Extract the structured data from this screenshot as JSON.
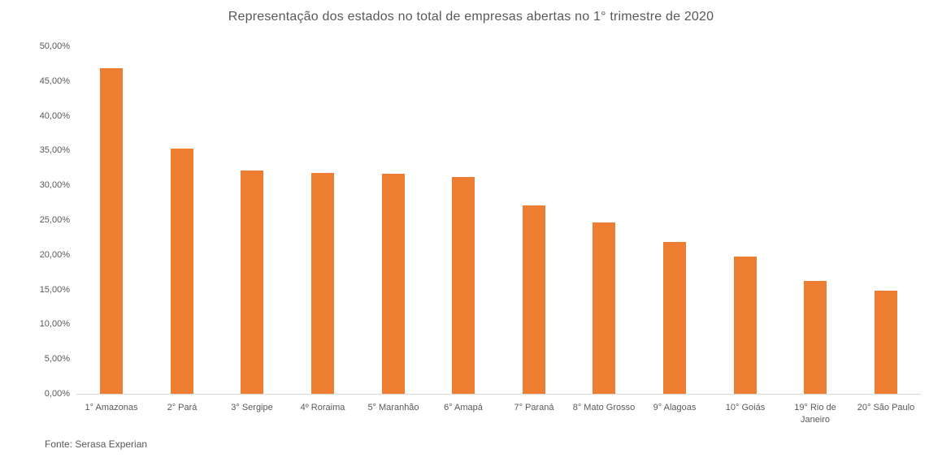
{
  "chart_data": {
    "type": "bar",
    "title": "Representação dos estados no total de empresas abertas no 1° trimestre de 2020",
    "categories": [
      "1° Amazonas",
      "2° Pará",
      "3° Sergipe",
      "4º Roraima",
      "5° Maranhão",
      "6° Amapá",
      "7° Paraná",
      "8° Mato Grosso",
      "9° Alagoas",
      "10° Goiás",
      "19° Rio de Janeiro",
      "20° São Paulo"
    ],
    "values": [
      46.9,
      35.3,
      32.1,
      31.8,
      31.7,
      31.2,
      27.1,
      24.7,
      21.9,
      19.8,
      16.2,
      14.8
    ],
    "xlabel": "",
    "ylabel": "",
    "ylim": [
      0,
      50
    ],
    "y_ticks": [
      "0,00%",
      "5,00%",
      "10,00%",
      "15,00%",
      "20,00%",
      "25,00%",
      "30,00%",
      "35,00%",
      "40,00%",
      "45,00%",
      "50,00%"
    ],
    "grid": false,
    "legend": false,
    "value_format": "percent-comma-decimal"
  },
  "footer": {
    "source": "Fonte: Serasa Experian"
  },
  "colors": {
    "bar": "#ED7D31",
    "text": "#595959",
    "axis_line": "#D9D9D9",
    "background": "#FFFFFF"
  }
}
